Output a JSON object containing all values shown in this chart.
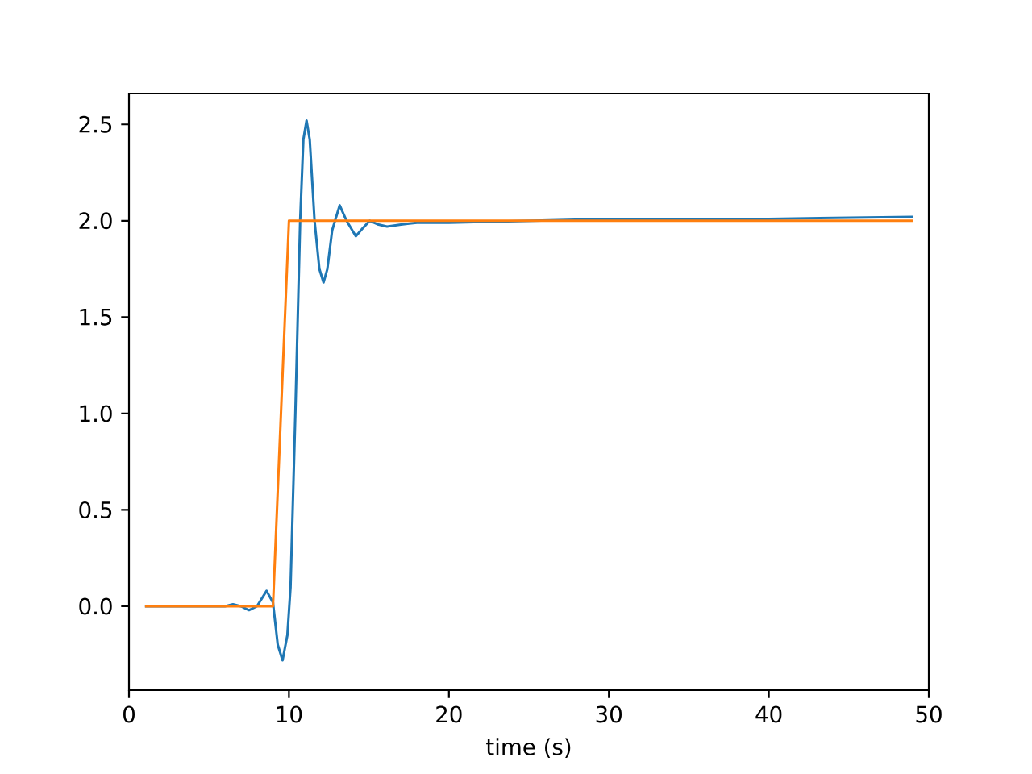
{
  "chart_data": {
    "type": "line",
    "xlabel": "time (s)",
    "xlim": [
      0,
      50
    ],
    "ylim": [
      -0.435,
      2.66
    ],
    "xticks": [
      0,
      10,
      20,
      30,
      40,
      50
    ],
    "yticks": [
      {
        "value": 0,
        "label": "0.0"
      },
      {
        "value": 0.5,
        "label": "0.5"
      },
      {
        "value": 1,
        "label": "1.0"
      },
      {
        "value": 1.5,
        "label": "1.5"
      },
      {
        "value": 2,
        "label": "2.0"
      },
      {
        "value": 2.5,
        "label": "2.5"
      }
    ],
    "series": [
      {
        "color": "#1f77b4",
        "x": [
          1,
          6,
          6.5,
          7.0,
          7.5,
          8.0,
          8.6,
          9.0,
          9.3,
          9.6,
          9.9,
          10.1,
          10.4,
          10.7,
          10.9,
          11.1,
          11.3,
          11.6,
          11.9,
          12.16,
          12.4,
          12.7,
          13.17,
          13.6,
          14.18,
          14.6,
          15.05,
          15.6,
          16.13,
          17,
          18,
          20,
          30,
          40,
          49
        ],
        "values": [
          0,
          0,
          0.01,
          0.0,
          -0.02,
          0.0,
          0.08,
          0.02,
          -0.2,
          -0.28,
          -0.15,
          0.1,
          1.0,
          2.0,
          2.42,
          2.52,
          2.42,
          2.0,
          1.75,
          1.68,
          1.75,
          1.95,
          2.08,
          2.0,
          1.92,
          1.96,
          2.0,
          1.98,
          1.97,
          1.98,
          1.99,
          1.99,
          2.01,
          2.01,
          2.02
        ]
      },
      {
        "color": "#ff7f0e",
        "x": [
          1,
          9,
          10,
          49
        ],
        "values": [
          0,
          0,
          2,
          2
        ]
      }
    ]
  }
}
